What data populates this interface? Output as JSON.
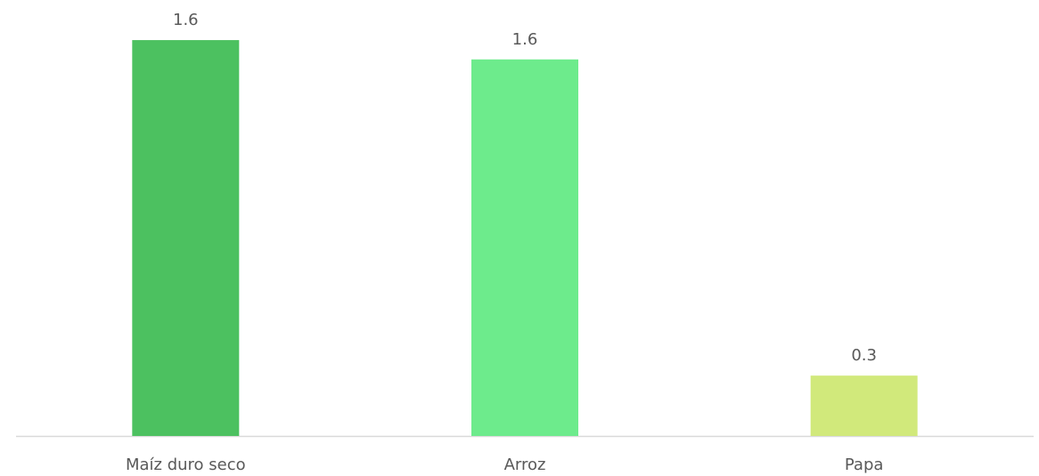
{
  "chart_data": {
    "type": "bar",
    "categories": [
      "Maíz duro seco",
      "Arroz",
      "Papa"
    ],
    "values": [
      1.64,
      1.56,
      0.25
    ],
    "value_labels": [
      "1.6",
      "1.6",
      "0.3"
    ],
    "colors": [
      "#4cc160",
      "#6deb8c",
      "#d1e97b"
    ]
  }
}
